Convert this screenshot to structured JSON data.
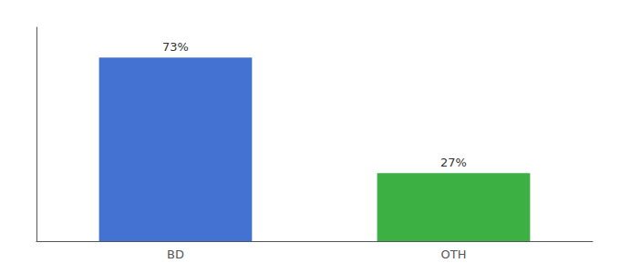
{
  "chart_data": {
    "type": "bar",
    "categories": [
      "BD",
      "OTH"
    ],
    "values": [
      73,
      27
    ],
    "value_labels": [
      "73%",
      "27%"
    ],
    "colors": [
      "#4472D3",
      "#3CB043"
    ],
    "ylim": [
      0,
      85
    ],
    "data_labels": true,
    "tick_labels": "x",
    "grid": false
  }
}
